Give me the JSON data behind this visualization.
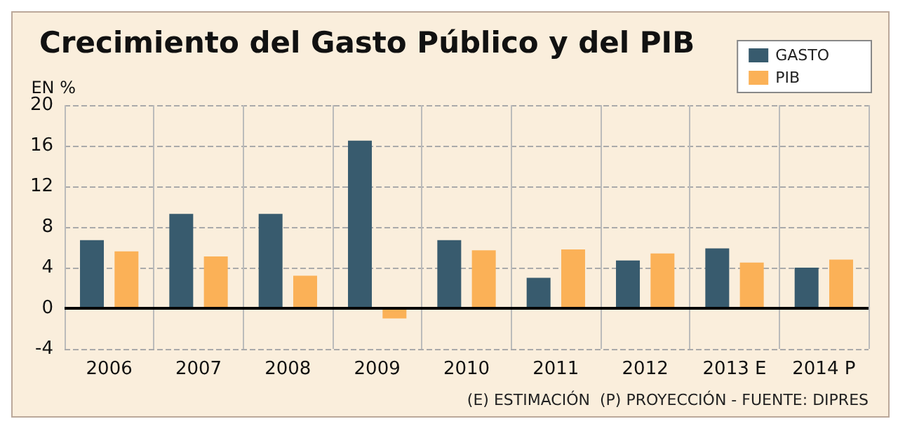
{
  "chart_data": {
    "type": "bar",
    "title": "Crecimiento del Gasto Público y del PIB",
    "ylabel": "EN %",
    "categories": [
      "2006",
      "2007",
      "2008",
      "2009",
      "2010",
      "2011",
      "2012",
      "2013 E",
      "2014 P"
    ],
    "series": [
      {
        "name": "GASTO",
        "color": "#385b6e",
        "values": [
          6.7,
          9.3,
          9.3,
          16.5,
          6.7,
          3.0,
          4.7,
          5.9,
          4.0
        ]
      },
      {
        "name": "PIB",
        "color": "#fbb157",
        "values": [
          5.6,
          5.1,
          3.2,
          -1.0,
          5.7,
          5.8,
          5.4,
          4.5,
          4.8
        ]
      }
    ],
    "ylim": [
      -4,
      20
    ],
    "yticks": [
      -4,
      0,
      4,
      8,
      12,
      16,
      20
    ],
    "grid": true,
    "legend": "top right",
    "annotations": [
      "(E) ESTIMACIÓN  (P) PROYECCIÓN - FUENTE: DIPRES"
    ]
  }
}
